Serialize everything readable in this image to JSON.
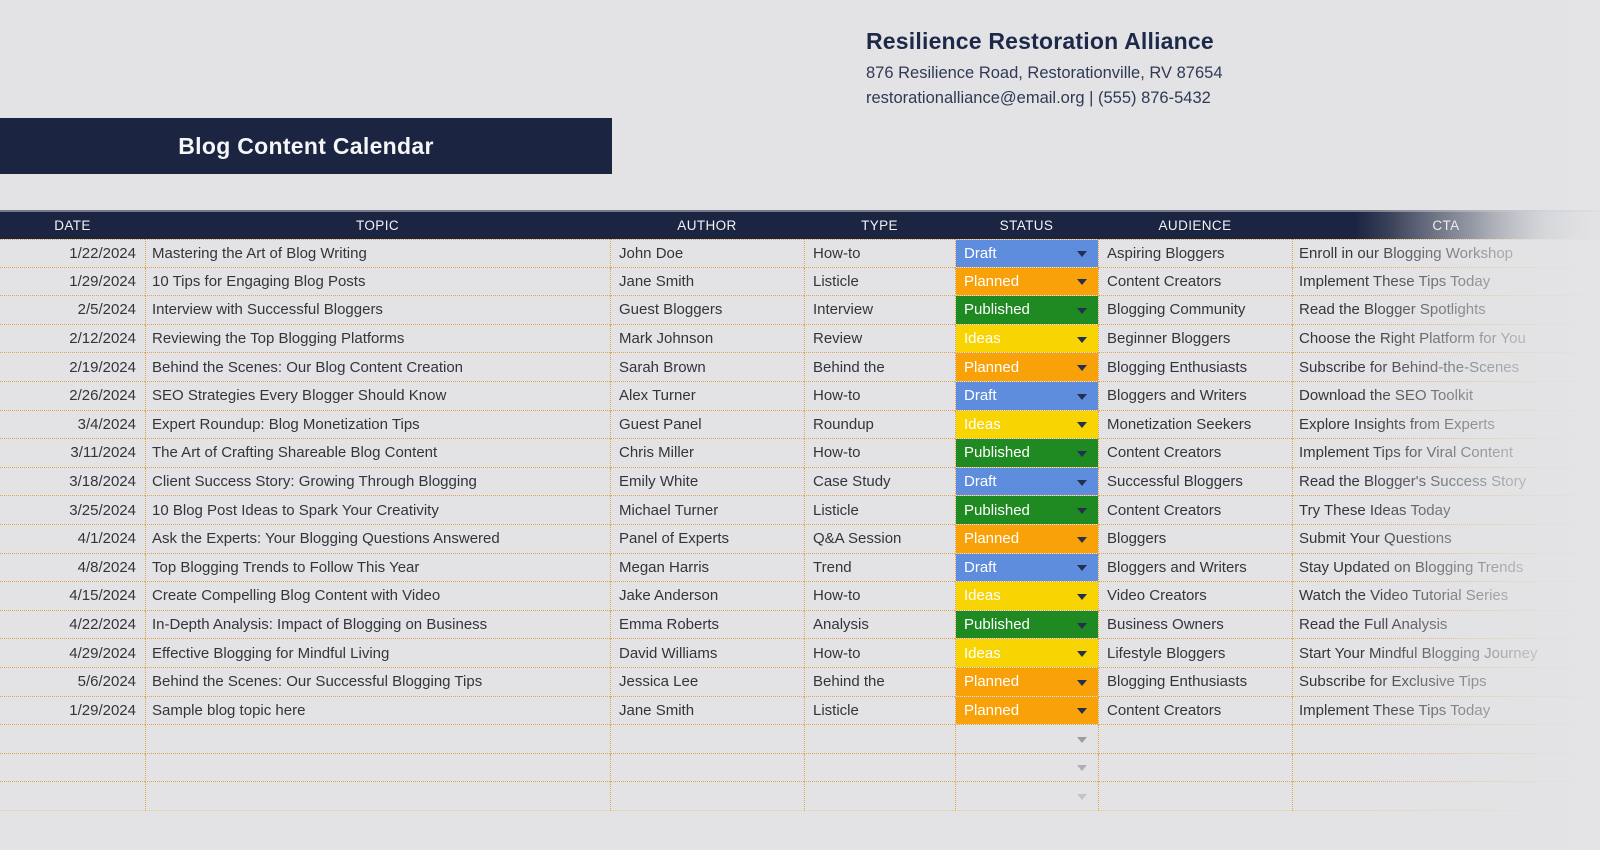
{
  "company": {
    "name": "Resilience Restoration Alliance",
    "address": "876 Resilience Road, Restorationville, RV 87654",
    "contact": "restorationalliance@email.org | (555) 876-5432"
  },
  "title": "Blog Content Calendar",
  "status_colors": {
    "Draft": "#5f8dde",
    "Planned": "#f9a109",
    "Published": "#1f8a21",
    "Ideas": "#f8d402"
  },
  "table": {
    "columns": [
      "DATE",
      "TOPIC",
      "AUTHOR",
      "TYPE",
      "STATUS",
      "AUDIENCE",
      "CTA"
    ],
    "rows": [
      {
        "date": "1/22/2024",
        "topic": "Mastering the Art of Blog Writing",
        "author": "John Doe",
        "type": "How-to",
        "status": "Draft",
        "audience": "Aspiring Bloggers",
        "cta": "Enroll in our Blogging Workshop"
      },
      {
        "date": "1/29/2024",
        "topic": "10 Tips for Engaging Blog Posts",
        "author": "Jane Smith",
        "type": "Listicle",
        "status": "Planned",
        "audience": "Content Creators",
        "cta": "Implement These Tips Today"
      },
      {
        "date": "2/5/2024",
        "topic": "Interview with Successful Bloggers",
        "author": "Guest Bloggers",
        "type": "Interview",
        "status": "Published",
        "audience": "Blogging Community",
        "cta": "Read the Blogger Spotlights"
      },
      {
        "date": "2/12/2024",
        "topic": "Reviewing the Top Blogging Platforms",
        "author": "Mark Johnson",
        "type": "Review",
        "status": "Ideas",
        "audience": "Beginner Bloggers",
        "cta": "Choose the Right Platform for You"
      },
      {
        "date": "2/19/2024",
        "topic": "Behind the Scenes: Our Blog Content Creation",
        "author": "Sarah Brown",
        "type": "Behind the",
        "status": "Planned",
        "audience": "Blogging Enthusiasts",
        "cta": "Subscribe for Behind-the-Scenes"
      },
      {
        "date": "2/26/2024",
        "topic": "SEO Strategies Every Blogger Should Know",
        "author": "Alex Turner",
        "type": "How-to",
        "status": "Draft",
        "audience": "Bloggers and Writers",
        "cta": "Download the SEO Toolkit"
      },
      {
        "date": "3/4/2024",
        "topic": "Expert Roundup: Blog Monetization Tips",
        "author": "Guest Panel",
        "type": "Roundup",
        "status": "Ideas",
        "audience": "Monetization Seekers",
        "cta": "Explore Insights from Experts"
      },
      {
        "date": "3/11/2024",
        "topic": "The Art of Crafting Shareable Blog Content",
        "author": "Chris Miller",
        "type": "How-to",
        "status": "Published",
        "audience": "Content Creators",
        "cta": "Implement Tips for Viral Content"
      },
      {
        "date": "3/18/2024",
        "topic": "Client Success Story: Growing Through Blogging",
        "author": "Emily White",
        "type": "Case Study",
        "status": "Draft",
        "audience": "Successful Bloggers",
        "cta": "Read the Blogger's Success Story"
      },
      {
        "date": "3/25/2024",
        "topic": "10 Blog Post Ideas to Spark Your Creativity",
        "author": "Michael Turner",
        "type": "Listicle",
        "status": "Published",
        "audience": "Content Creators",
        "cta": "Try These Ideas Today"
      },
      {
        "date": "4/1/2024",
        "topic": "Ask the Experts: Your Blogging Questions Answered",
        "author": "Panel of Experts",
        "type": "Q&A Session",
        "status": "Planned",
        "audience": "Bloggers",
        "cta": "Submit Your Questions"
      },
      {
        "date": "4/8/2024",
        "topic": "Top Blogging Trends to Follow This Year",
        "author": "Megan Harris",
        "type": "Trend",
        "status": "Draft",
        "audience": "Bloggers and Writers",
        "cta": "Stay Updated on Blogging Trends"
      },
      {
        "date": "4/15/2024",
        "topic": "Create Compelling Blog Content with Video",
        "author": "Jake Anderson",
        "type": "How-to",
        "status": "Ideas",
        "audience": "Video Creators",
        "cta": "Watch the Video Tutorial Series"
      },
      {
        "date": "4/22/2024",
        "topic": "In-Depth Analysis: Impact of Blogging on Business",
        "author": "Emma Roberts",
        "type": "Analysis",
        "status": "Published",
        "audience": "Business Owners",
        "cta": "Read the Full Analysis"
      },
      {
        "date": "4/29/2024",
        "topic": "Effective Blogging for Mindful Living",
        "author": "David Williams",
        "type": "How-to",
        "status": "Ideas",
        "audience": "Lifestyle Bloggers",
        "cta": "Start Your Mindful Blogging Journey"
      },
      {
        "date": "5/6/2024",
        "topic": "Behind the Scenes: Our Successful Blogging Tips",
        "author": "Jessica Lee",
        "type": "Behind the",
        "status": "Planned",
        "audience": "Blogging Enthusiasts",
        "cta": "Subscribe for Exclusive Tips"
      },
      {
        "date": "1/29/2024",
        "topic": "Sample blog topic here",
        "author": "Jane Smith",
        "type": "Listicle",
        "status": "Planned",
        "audience": "Content Creators",
        "cta": "Implement These Tips Today"
      }
    ],
    "empty_row_count": 3
  }
}
